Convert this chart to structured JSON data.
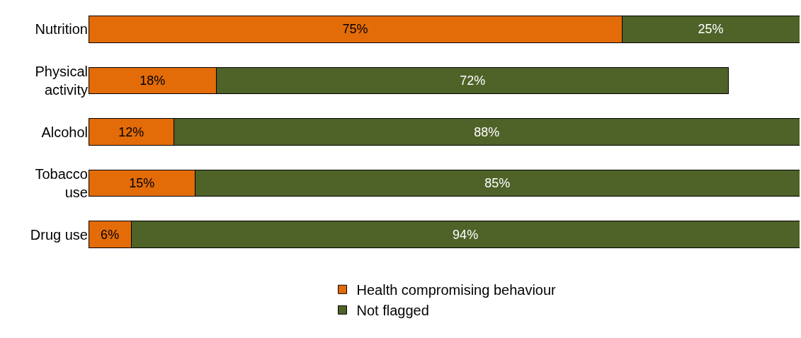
{
  "chart_data": {
    "type": "bar",
    "orientation": "horizontal",
    "stacked": true,
    "categories": [
      "Nutrition",
      "Physical activity",
      "Alcohol",
      "Tobacco use",
      "Drug use"
    ],
    "series": [
      {
        "name": "Health compromising behaviour",
        "color": "#e36c09",
        "values": [
          75,
          18,
          12,
          15,
          6
        ],
        "value_labels": [
          "75%",
          "18%",
          "12%",
          "15%",
          "6%"
        ]
      },
      {
        "name": "Not flagged",
        "color": "#4f6228",
        "values": [
          25,
          72,
          88,
          85,
          94
        ],
        "value_labels": [
          "25%",
          "72%",
          "88%",
          "85%",
          "94%"
        ]
      }
    ],
    "xlim": [
      0,
      100
    ],
    "tick_labels": "y",
    "legend": "bottom"
  }
}
